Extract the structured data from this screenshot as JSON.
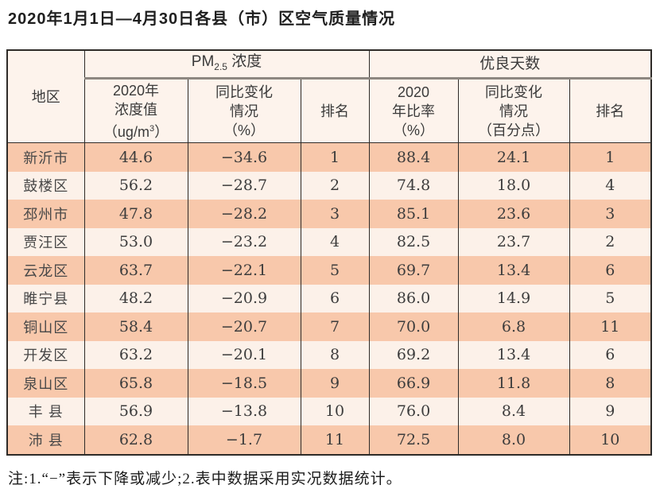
{
  "title": "2020年1月1日—4月30日各县（市）区空气质量情况",
  "note": "注:1.“−”表示下降或减少;2.表中数据采用实况数据统计。",
  "colors": {
    "row_odd": "#f8c8ab",
    "row_even": "#fcf1e9",
    "header_bg": "#fdf3ec",
    "grid_dark": "#2e2b28",
    "group_underline": "#8d8781",
    "text": "#3c3c3c"
  },
  "table": {
    "header": {
      "region": "地区",
      "pm_group": {
        "prefix": "PM",
        "sub": "2.5",
        "suffix": " 浓度"
      },
      "days_group": "优良天数",
      "pm_value": {
        "l1": "2020年",
        "l2": "浓度值",
        "l3a": "（ug/m",
        "l3sup": "3",
        "l3b": "）"
      },
      "pm_change": {
        "l1": "同比变化",
        "l2": "情况",
        "l3": "（%）"
      },
      "pm_rank": "排名",
      "rate": {
        "l1": "2020",
        "l2": "年比率",
        "l3": "（%）"
      },
      "rate_change": {
        "l1": "同比变化",
        "l2": "情况",
        "l3": "（百分点）"
      },
      "rate_rank": "排名"
    },
    "row_keys": [
      "region",
      "pm_value",
      "pm_change",
      "pm_rank",
      "rate",
      "rate_change",
      "rate_rank"
    ],
    "rows": [
      {
        "region": "新沂市",
        "pm_value": "44.6",
        "pm_change": "−34.6",
        "pm_rank": "1",
        "rate": "88.4",
        "rate_change": "24.1",
        "rate_rank": "1"
      },
      {
        "region": "鼓楼区",
        "pm_value": "56.2",
        "pm_change": "−28.7",
        "pm_rank": "2",
        "rate": "74.8",
        "rate_change": "18.0",
        "rate_rank": "4"
      },
      {
        "region": "邳州市",
        "pm_value": "47.8",
        "pm_change": "−28.2",
        "pm_rank": "3",
        "rate": "85.1",
        "rate_change": "23.6",
        "rate_rank": "3"
      },
      {
        "region": "贾汪区",
        "pm_value": "53.0",
        "pm_change": "−23.2",
        "pm_rank": "4",
        "rate": "82.5",
        "rate_change": "23.7",
        "rate_rank": "2"
      },
      {
        "region": "云龙区",
        "pm_value": "63.7",
        "pm_change": "−22.1",
        "pm_rank": "5",
        "rate": "69.7",
        "rate_change": "13.4",
        "rate_rank": "6"
      },
      {
        "region": "睢宁县",
        "pm_value": "48.2",
        "pm_change": "−20.9",
        "pm_rank": "6",
        "rate": "86.0",
        "rate_change": "14.9",
        "rate_rank": "5"
      },
      {
        "region": "铜山区",
        "pm_value": "58.4",
        "pm_change": "−20.7",
        "pm_rank": "7",
        "rate": "70.0",
        "rate_change": "6.8",
        "rate_rank": "11"
      },
      {
        "region": "开发区",
        "pm_value": "63.2",
        "pm_change": "−20.1",
        "pm_rank": "8",
        "rate": "69.2",
        "rate_change": "13.4",
        "rate_rank": "6"
      },
      {
        "region": "泉山区",
        "pm_value": "65.8",
        "pm_change": "−18.5",
        "pm_rank": "9",
        "rate": "66.9",
        "rate_change": "11.8",
        "rate_rank": "8"
      },
      {
        "region": "丰 县",
        "pm_value": "56.9",
        "pm_change": "−13.8",
        "pm_rank": "10",
        "rate": "76.0",
        "rate_change": "8.4",
        "rate_rank": "9"
      },
      {
        "region": "沛 县",
        "pm_value": "62.8",
        "pm_change": "−1.7",
        "pm_rank": "11",
        "rate": "72.5",
        "rate_change": "8.0",
        "rate_rank": "10"
      }
    ]
  },
  "chart_data": {
    "type": "table",
    "title": "2020年1月1日—4月30日各县（市）区空气质量情况",
    "columns": [
      "地区",
      "PM2.5浓度 2020年浓度值（ug/m3）",
      "PM2.5浓度 同比变化情况（%）",
      "PM2.5浓度 排名",
      "优良天数 2020年比率（%）",
      "优良天数 同比变化情况（百分点）",
      "优良天数 排名"
    ],
    "rows": [
      [
        "新沂市",
        44.6,
        -34.6,
        1,
        88.4,
        24.1,
        1
      ],
      [
        "鼓楼区",
        56.2,
        -28.7,
        2,
        74.8,
        18.0,
        4
      ],
      [
        "邳州市",
        47.8,
        -28.2,
        3,
        85.1,
        23.6,
        3
      ],
      [
        "贾汪区",
        53.0,
        -23.2,
        4,
        82.5,
        23.7,
        2
      ],
      [
        "云龙区",
        63.7,
        -22.1,
        5,
        69.7,
        13.4,
        6
      ],
      [
        "睢宁县",
        48.2,
        -20.9,
        6,
        86.0,
        14.9,
        5
      ],
      [
        "铜山区",
        58.4,
        -20.7,
        7,
        70.0,
        6.8,
        11
      ],
      [
        "开发区",
        63.2,
        -20.1,
        8,
        69.2,
        13.4,
        6
      ],
      [
        "泉山区",
        65.8,
        -18.5,
        9,
        66.9,
        11.8,
        8
      ],
      [
        "丰县",
        56.9,
        -13.8,
        10,
        76.0,
        8.4,
        9
      ],
      [
        "沛县",
        62.8,
        -1.7,
        11,
        72.5,
        8.0,
        10
      ]
    ],
    "note": "注:1.“−”表示下降或减少;2.表中数据采用实况数据统计。"
  }
}
